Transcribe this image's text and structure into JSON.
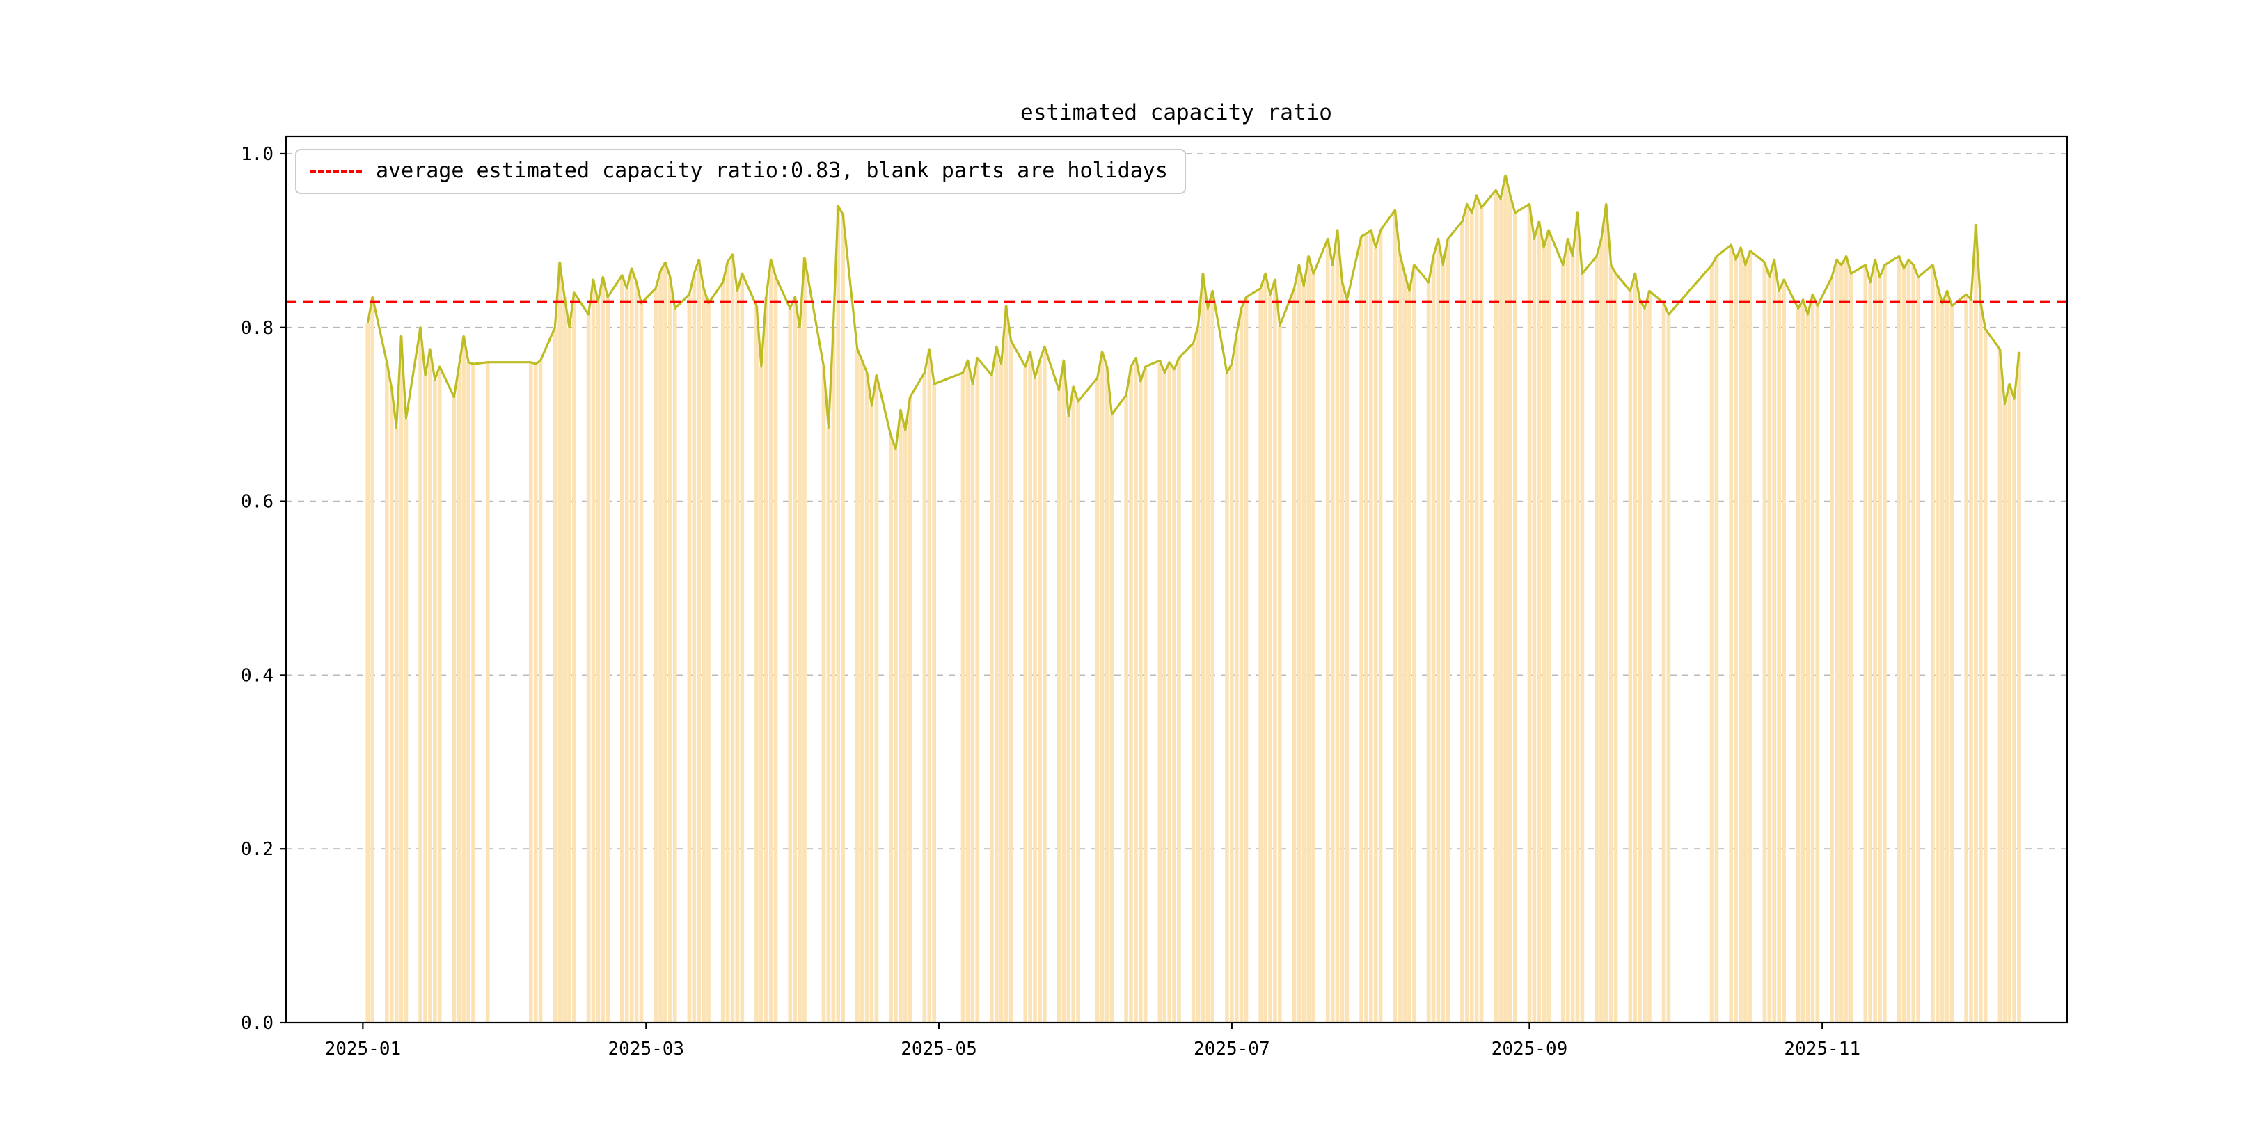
{
  "figure": {
    "title": "estimated capacity ratio",
    "background": "#ffffff"
  },
  "legend": {
    "label": "average estimated capacity ratio:0.83, blank parts are holidays",
    "line_color": "#ff0000",
    "line_style": "dashed",
    "position": "upper-left"
  },
  "chart_data": {
    "type": "bar-line",
    "title": "estimated capacity ratio",
    "xlabel": "",
    "ylabel": "",
    "ylim": [
      0.0,
      1.0
    ],
    "y_draw_max": 1.02,
    "yticks": [
      0.0,
      0.2,
      0.4,
      0.6,
      0.8,
      1.0
    ],
    "x_domain": [
      "2024-12-16",
      "2025-12-22"
    ],
    "xticks": [
      {
        "label": "2025-01",
        "date": "2025-01-01"
      },
      {
        "label": "2025-03",
        "date": "2025-03-01"
      },
      {
        "label": "2025-05",
        "date": "2025-05-01"
      },
      {
        "label": "2025-07",
        "date": "2025-07-01"
      },
      {
        "label": "2025-09",
        "date": "2025-09-01"
      },
      {
        "label": "2025-11",
        "date": "2025-11-01"
      }
    ],
    "grid": true,
    "legend_position": "upper-left",
    "average_line": {
      "value": 0.83,
      "color": "#ff0000",
      "style": "dashed"
    },
    "colors": {
      "bar": "#fce3b6",
      "line": "#bcbd22",
      "grid": "#b8b8b8",
      "axis": "#000000",
      "avg": "#ff0000"
    },
    "note": "blank parts are holidays (weekends and holiday periods have no bars)",
    "points": [
      [
        "2025-01-02",
        0.805
      ],
      [
        "2025-01-03",
        0.835
      ],
      [
        "2025-01-06",
        0.76
      ],
      [
        "2025-01-07",
        0.73
      ],
      [
        "2025-01-08",
        0.685
      ],
      [
        "2025-01-09",
        0.79
      ],
      [
        "2025-01-10",
        0.695
      ],
      [
        "2025-01-13",
        0.8
      ],
      [
        "2025-01-14",
        0.745
      ],
      [
        "2025-01-15",
        0.775
      ],
      [
        "2025-01-16",
        0.74
      ],
      [
        "2025-01-17",
        0.755
      ],
      [
        "2025-01-20",
        0.72
      ],
      [
        "2025-01-21",
        0.755
      ],
      [
        "2025-01-22",
        0.79
      ],
      [
        "2025-01-23",
        0.76
      ],
      [
        "2025-01-24",
        0.758
      ],
      [
        "2025-01-27",
        0.76
      ],
      [
        "2025-02-05",
        0.76
      ],
      [
        "2025-02-06",
        0.758
      ],
      [
        "2025-02-07",
        0.762
      ],
      [
        "2025-02-10",
        0.8
      ],
      [
        "2025-02-11",
        0.875
      ],
      [
        "2025-02-12",
        0.835
      ],
      [
        "2025-02-13",
        0.8
      ],
      [
        "2025-02-14",
        0.84
      ],
      [
        "2025-02-17",
        0.815
      ],
      [
        "2025-02-18",
        0.855
      ],
      [
        "2025-02-19",
        0.83
      ],
      [
        "2025-02-20",
        0.858
      ],
      [
        "2025-02-21",
        0.835
      ],
      [
        "2025-02-24",
        0.86
      ],
      [
        "2025-02-25",
        0.845
      ],
      [
        "2025-02-26",
        0.868
      ],
      [
        "2025-02-27",
        0.852
      ],
      [
        "2025-02-28",
        0.828
      ],
      [
        "2025-03-03",
        0.845
      ],
      [
        "2025-03-04",
        0.865
      ],
      [
        "2025-03-05",
        0.875
      ],
      [
        "2025-03-06",
        0.858
      ],
      [
        "2025-03-07",
        0.822
      ],
      [
        "2025-03-10",
        0.838
      ],
      [
        "2025-03-11",
        0.862
      ],
      [
        "2025-03-12",
        0.878
      ],
      [
        "2025-03-13",
        0.845
      ],
      [
        "2025-03-14",
        0.828
      ],
      [
        "2025-03-17",
        0.852
      ],
      [
        "2025-03-18",
        0.876
      ],
      [
        "2025-03-19",
        0.884
      ],
      [
        "2025-03-20",
        0.842
      ],
      [
        "2025-03-21",
        0.862
      ],
      [
        "2025-03-24",
        0.825
      ],
      [
        "2025-03-25",
        0.755
      ],
      [
        "2025-03-26",
        0.835
      ],
      [
        "2025-03-27",
        0.878
      ],
      [
        "2025-03-28",
        0.858
      ],
      [
        "2025-03-31",
        0.822
      ],
      [
        "2025-04-01",
        0.835
      ],
      [
        "2025-04-02",
        0.8
      ],
      [
        "2025-04-03",
        0.88
      ],
      [
        "2025-04-07",
        0.755
      ],
      [
        "2025-04-08",
        0.685
      ],
      [
        "2025-04-09",
        0.8
      ],
      [
        "2025-04-10",
        0.94
      ],
      [
        "2025-04-11",
        0.93
      ],
      [
        "2025-04-14",
        0.775
      ],
      [
        "2025-04-15",
        0.762
      ],
      [
        "2025-04-16",
        0.748
      ],
      [
        "2025-04-17",
        0.71
      ],
      [
        "2025-04-18",
        0.745
      ],
      [
        "2025-04-21",
        0.675
      ],
      [
        "2025-04-22",
        0.66
      ],
      [
        "2025-04-23",
        0.705
      ],
      [
        "2025-04-24",
        0.682
      ],
      [
        "2025-04-25",
        0.72
      ],
      [
        "2025-04-28",
        0.748
      ],
      [
        "2025-04-29",
        0.775
      ],
      [
        "2025-04-30",
        0.735
      ],
      [
        "2025-05-06",
        0.748
      ],
      [
        "2025-05-07",
        0.762
      ],
      [
        "2025-05-08",
        0.735
      ],
      [
        "2025-05-09",
        0.765
      ],
      [
        "2025-05-12",
        0.745
      ],
      [
        "2025-05-13",
        0.778
      ],
      [
        "2025-05-14",
        0.758
      ],
      [
        "2025-05-15",
        0.825
      ],
      [
        "2025-05-16",
        0.785
      ],
      [
        "2025-05-19",
        0.755
      ],
      [
        "2025-05-20",
        0.772
      ],
      [
        "2025-05-21",
        0.742
      ],
      [
        "2025-05-22",
        0.762
      ],
      [
        "2025-05-23",
        0.778
      ],
      [
        "2025-05-26",
        0.728
      ],
      [
        "2025-05-27",
        0.762
      ],
      [
        "2025-05-28",
        0.698
      ],
      [
        "2025-05-29",
        0.732
      ],
      [
        "2025-05-30",
        0.715
      ],
      [
        "2025-06-03",
        0.742
      ],
      [
        "2025-06-04",
        0.772
      ],
      [
        "2025-06-05",
        0.755
      ],
      [
        "2025-06-06",
        0.7
      ],
      [
        "2025-06-09",
        0.722
      ],
      [
        "2025-06-10",
        0.755
      ],
      [
        "2025-06-11",
        0.765
      ],
      [
        "2025-06-12",
        0.738
      ],
      [
        "2025-06-13",
        0.755
      ],
      [
        "2025-06-16",
        0.762
      ],
      [
        "2025-06-17",
        0.748
      ],
      [
        "2025-06-18",
        0.76
      ],
      [
        "2025-06-19",
        0.752
      ],
      [
        "2025-06-20",
        0.765
      ],
      [
        "2025-06-23",
        0.782
      ],
      [
        "2025-06-24",
        0.802
      ],
      [
        "2025-06-25",
        0.862
      ],
      [
        "2025-06-26",
        0.822
      ],
      [
        "2025-06-27",
        0.842
      ],
      [
        "2025-06-30",
        0.748
      ],
      [
        "2025-07-01",
        0.758
      ],
      [
        "2025-07-02",
        0.792
      ],
      [
        "2025-07-03",
        0.822
      ],
      [
        "2025-07-04",
        0.835
      ],
      [
        "2025-07-07",
        0.845
      ],
      [
        "2025-07-08",
        0.862
      ],
      [
        "2025-07-09",
        0.838
      ],
      [
        "2025-07-10",
        0.855
      ],
      [
        "2025-07-11",
        0.802
      ],
      [
        "2025-07-14",
        0.845
      ],
      [
        "2025-07-15",
        0.872
      ],
      [
        "2025-07-16",
        0.848
      ],
      [
        "2025-07-17",
        0.882
      ],
      [
        "2025-07-18",
        0.862
      ],
      [
        "2025-07-21",
        0.902
      ],
      [
        "2025-07-22",
        0.872
      ],
      [
        "2025-07-23",
        0.912
      ],
      [
        "2025-07-24",
        0.852
      ],
      [
        "2025-07-25",
        0.832
      ],
      [
        "2025-07-28",
        0.905
      ],
      [
        "2025-07-29",
        0.908
      ],
      [
        "2025-07-30",
        0.912
      ],
      [
        "2025-07-31",
        0.892
      ],
      [
        "2025-08-01",
        0.912
      ],
      [
        "2025-08-04",
        0.935
      ],
      [
        "2025-08-05",
        0.885
      ],
      [
        "2025-08-06",
        0.862
      ],
      [
        "2025-08-07",
        0.842
      ],
      [
        "2025-08-08",
        0.872
      ],
      [
        "2025-08-11",
        0.852
      ],
      [
        "2025-08-12",
        0.882
      ],
      [
        "2025-08-13",
        0.902
      ],
      [
        "2025-08-14",
        0.872
      ],
      [
        "2025-08-15",
        0.902
      ],
      [
        "2025-08-18",
        0.922
      ],
      [
        "2025-08-19",
        0.942
      ],
      [
        "2025-08-20",
        0.932
      ],
      [
        "2025-08-21",
        0.952
      ],
      [
        "2025-08-22",
        0.938
      ],
      [
        "2025-08-25",
        0.958
      ],
      [
        "2025-08-26",
        0.948
      ],
      [
        "2025-08-27",
        0.975
      ],
      [
        "2025-08-28",
        0.952
      ],
      [
        "2025-08-29",
        0.932
      ],
      [
        "2025-09-01",
        0.942
      ],
      [
        "2025-09-02",
        0.902
      ],
      [
        "2025-09-03",
        0.922
      ],
      [
        "2025-09-04",
        0.892
      ],
      [
        "2025-09-05",
        0.912
      ],
      [
        "2025-09-08",
        0.872
      ],
      [
        "2025-09-09",
        0.902
      ],
      [
        "2025-09-10",
        0.882
      ],
      [
        "2025-09-11",
        0.932
      ],
      [
        "2025-09-12",
        0.862
      ],
      [
        "2025-09-15",
        0.882
      ],
      [
        "2025-09-16",
        0.902
      ],
      [
        "2025-09-17",
        0.942
      ],
      [
        "2025-09-18",
        0.872
      ],
      [
        "2025-09-19",
        0.862
      ],
      [
        "2025-09-22",
        0.842
      ],
      [
        "2025-09-23",
        0.862
      ],
      [
        "2025-09-24",
        0.832
      ],
      [
        "2025-09-25",
        0.822
      ],
      [
        "2025-09-26",
        0.842
      ],
      [
        "2025-09-29",
        0.828
      ],
      [
        "2025-09-30",
        0.815
      ],
      [
        "2025-10-09",
        0.872
      ],
      [
        "2025-10-10",
        0.882
      ],
      [
        "2025-10-13",
        0.895
      ],
      [
        "2025-10-14",
        0.878
      ],
      [
        "2025-10-15",
        0.892
      ],
      [
        "2025-10-16",
        0.872
      ],
      [
        "2025-10-17",
        0.888
      ],
      [
        "2025-10-20",
        0.875
      ],
      [
        "2025-10-21",
        0.858
      ],
      [
        "2025-10-22",
        0.878
      ],
      [
        "2025-10-23",
        0.842
      ],
      [
        "2025-10-24",
        0.855
      ],
      [
        "2025-10-27",
        0.822
      ],
      [
        "2025-10-28",
        0.832
      ],
      [
        "2025-10-29",
        0.815
      ],
      [
        "2025-10-30",
        0.838
      ],
      [
        "2025-10-31",
        0.825
      ],
      [
        "2025-11-03",
        0.858
      ],
      [
        "2025-11-04",
        0.878
      ],
      [
        "2025-11-05",
        0.872
      ],
      [
        "2025-11-06",
        0.882
      ],
      [
        "2025-11-07",
        0.862
      ],
      [
        "2025-11-10",
        0.872
      ],
      [
        "2025-11-11",
        0.852
      ],
      [
        "2025-11-12",
        0.878
      ],
      [
        "2025-11-13",
        0.858
      ],
      [
        "2025-11-14",
        0.872
      ],
      [
        "2025-11-17",
        0.882
      ],
      [
        "2025-11-18",
        0.868
      ],
      [
        "2025-11-19",
        0.878
      ],
      [
        "2025-11-20",
        0.872
      ],
      [
        "2025-11-21",
        0.858
      ],
      [
        "2025-11-24",
        0.872
      ],
      [
        "2025-11-25",
        0.848
      ],
      [
        "2025-11-26",
        0.828
      ],
      [
        "2025-11-27",
        0.842
      ],
      [
        "2025-11-28",
        0.825
      ],
      [
        "2025-12-01",
        0.838
      ],
      [
        "2025-12-02",
        0.832
      ],
      [
        "2025-12-03",
        0.918
      ],
      [
        "2025-12-04",
        0.828
      ],
      [
        "2025-12-05",
        0.798
      ],
      [
        "2025-12-08",
        0.775
      ],
      [
        "2025-12-09",
        0.712
      ],
      [
        "2025-12-10",
        0.735
      ],
      [
        "2025-12-11",
        0.718
      ],
      [
        "2025-12-12",
        0.772
      ]
    ]
  }
}
